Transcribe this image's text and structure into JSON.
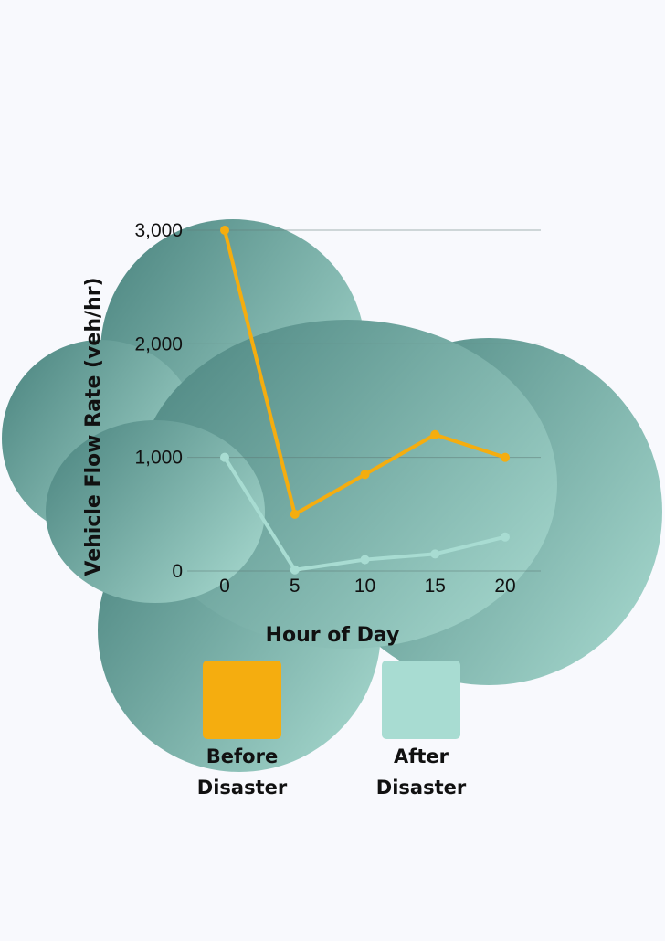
{
  "colors": {
    "page_background": "#f8f9fd",
    "blob_dark": "#4f8883",
    "blob_light": "#a4d6cc",
    "before_series": "#f5ad0f",
    "after_series": "#a8dcd2",
    "gridline": "#5f7c78",
    "text": "#111111"
  },
  "chart_data": {
    "type": "line",
    "x": [
      0,
      5,
      10,
      15,
      20
    ],
    "xticks": [
      "0",
      "5",
      "10",
      "15",
      "20"
    ],
    "yticks": [
      "0",
      "1,000",
      "2,000",
      "3,000"
    ],
    "ylim": [
      0,
      3000
    ],
    "xlabel": "Hour of Day",
    "ylabel": "Vehicle Flow Rate (veh/hr)",
    "grid": true,
    "legend_position": "bottom",
    "series": [
      {
        "name": "Before\nDisaster",
        "color": "#f5ad0f",
        "values": [
          3000,
          500,
          850,
          1200,
          1000
        ]
      },
      {
        "name": "After\nDisaster",
        "color": "#a8dcd2",
        "values": [
          1000,
          10,
          100,
          150,
          300
        ]
      }
    ]
  }
}
